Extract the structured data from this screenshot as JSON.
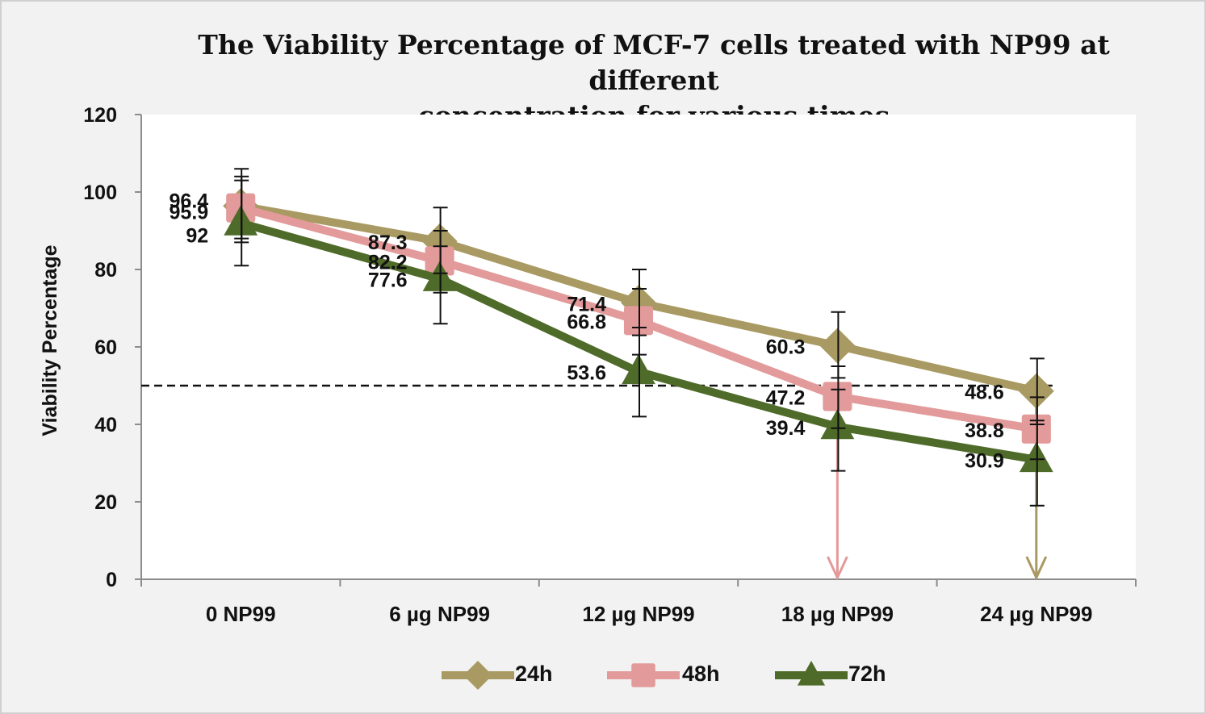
{
  "chart_data": {
    "type": "line",
    "title_lines": [
      "The Viability Percentage of MCF-7 cells treated with NP99 at different",
      "concentration for various times"
    ],
    "xlabel": "",
    "ylabel": "Viability Percentage",
    "categories": [
      "0 NP99",
      "6 µg NP99",
      "12 µg NP99",
      "18 µg NP99",
      "24 µg NP99"
    ],
    "ylim": [
      0,
      120
    ],
    "yticks": [
      "0",
      "20",
      "40",
      "60",
      "80",
      "100",
      "120"
    ],
    "reference_line": 50,
    "series": [
      {
        "name": "24h",
        "color": "#a89a62",
        "marker": "diamond",
        "values": [
          96.4,
          87.3,
          71.4,
          60.3,
          48.6
        ],
        "labels": [
          "96.4",
          "87.3",
          "71.4",
          "60.3",
          "48.6"
        ],
        "error_upper": [
          106,
          96,
          80,
          69,
          57
        ],
        "error_lower": [
          87,
          79,
          63,
          52,
          40
        ]
      },
      {
        "name": "48h",
        "color": "#e39a9a",
        "marker": "square",
        "values": [
          95.9,
          82.2,
          66.8,
          47.2,
          38.8
        ],
        "labels": [
          "95.9",
          "82.2",
          "66.8",
          "47.2",
          "38.8"
        ],
        "error_upper": [
          104,
          90,
          75,
          55,
          47
        ],
        "error_lower": [
          88,
          74,
          58,
          39,
          31
        ]
      },
      {
        "name": "72h",
        "color": "#4f6b2a",
        "marker": "triangle",
        "values": [
          92,
          77.6,
          53.6,
          39.4,
          30.9
        ],
        "labels": [
          "92",
          "77.6",
          "53.6",
          "39.4",
          "30.9"
        ],
        "error_upper": [
          103,
          86,
          65,
          49,
          41
        ],
        "error_lower": [
          81,
          66,
          42,
          28,
          19
        ]
      }
    ],
    "arrows": [
      {
        "category_index": 3,
        "color": "#e39a9a"
      },
      {
        "category_index": 4,
        "color": "#a89a62"
      }
    ],
    "legend_position": "bottom"
  }
}
